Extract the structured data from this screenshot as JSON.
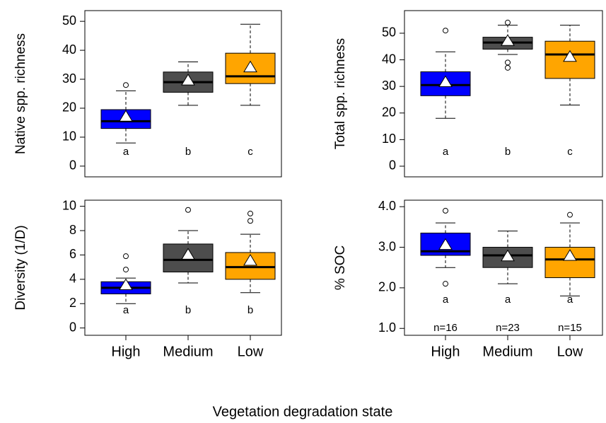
{
  "chart_data": [
    {
      "type": "box",
      "ylabel": "Native spp. richness",
      "categories": [
        null,
        null,
        null
      ],
      "ylim": [
        -3.7,
        53.7
      ],
      "yticks": [
        0,
        10,
        20,
        30,
        40,
        50
      ],
      "boxes": [
        {
          "color": "#0000ff",
          "whisker_low": 8,
          "q1": 13,
          "median": 15.5,
          "q3": 19.5,
          "whisker_high": 26,
          "mean": 17,
          "outliers": [
            28
          ],
          "letter": "a"
        },
        {
          "color": "#4d4d4d",
          "whisker_low": 21,
          "q1": 25.5,
          "median": 29,
          "q3": 32.5,
          "whisker_high": 36,
          "mean": 29.5,
          "outliers": [],
          "letter": "b"
        },
        {
          "color": "#ffa500",
          "whisker_low": 21,
          "q1": 28.5,
          "median": 31,
          "q3": 39,
          "whisker_high": 49,
          "mean": 34,
          "outliers": [],
          "letter": "c"
        }
      ]
    },
    {
      "type": "box",
      "ylabel": "Total spp. richness",
      "categories": [
        null,
        null,
        null
      ],
      "ylim": [
        -4,
        58.5
      ],
      "yticks": [
        0,
        10,
        20,
        30,
        40,
        50
      ],
      "boxes": [
        {
          "color": "#0000ff",
          "whisker_low": 18,
          "q1": 26.5,
          "median": 30.5,
          "q3": 35.5,
          "whisker_high": 43,
          "mean": 31.5,
          "outliers": [
            51
          ],
          "letter": "a"
        },
        {
          "color": "#4d4d4d",
          "whisker_low": 42,
          "q1": 44,
          "median": 46.5,
          "q3": 48.5,
          "whisker_high": 53,
          "mean": 47,
          "outliers": [
            54,
            39,
            37
          ],
          "letter": "b"
        },
        {
          "color": "#ffa500",
          "whisker_low": 23,
          "q1": 33,
          "median": 42,
          "q3": 47,
          "whisker_high": 53,
          "mean": 41,
          "outliers": [],
          "letter": "c"
        }
      ]
    },
    {
      "type": "box",
      "ylabel": "Diversity (1/D)",
      "categories": [
        "High",
        "Medium",
        "Low"
      ],
      "ylim": [
        -0.6,
        10.5
      ],
      "yticks": [
        0,
        2,
        4,
        6,
        8,
        10
      ],
      "boxes": [
        {
          "color": "#0000ff",
          "whisker_low": 2,
          "q1": 2.8,
          "median": 3.3,
          "q3": 3.8,
          "whisker_high": 4.1,
          "mean": 3.5,
          "outliers": [
            4.8,
            5.9
          ],
          "letter": "a"
        },
        {
          "color": "#4d4d4d",
          "whisker_low": 3.7,
          "q1": 4.6,
          "median": 5.6,
          "q3": 6.9,
          "whisker_high": 8,
          "mean": 6,
          "outliers": [
            9.7
          ],
          "letter": "b"
        },
        {
          "color": "#ffa500",
          "whisker_low": 2.9,
          "q1": 4,
          "median": 5,
          "q3": 6.2,
          "whisker_high": 7.7,
          "mean": 5.5,
          "outliers": [
            8.8,
            9.4
          ],
          "letter": "b"
        }
      ]
    },
    {
      "type": "box",
      "ylabel": "% SOC",
      "categories": [
        "High",
        "Medium",
        "Low"
      ],
      "ylim": [
        0.83,
        4.16
      ],
      "yticks": [
        {
          "value": 1,
          "label": "1.0"
        },
        {
          "value": 2,
          "label": "2.0"
        },
        {
          "value": 3,
          "label": "3.0"
        },
        {
          "value": 4,
          "label": "4.0"
        }
      ],
      "boxes": [
        {
          "color": "#0000ff",
          "whisker_low": 2.5,
          "q1": 2.8,
          "median": 2.9,
          "q3": 3.35,
          "whisker_high": 3.6,
          "mean": 3.05,
          "outliers": [
            3.9,
            2.1
          ],
          "letter": "a",
          "n": "n=16"
        },
        {
          "color": "#4d4d4d",
          "whisker_low": 2.1,
          "q1": 2.5,
          "median": 2.8,
          "q3": 3.0,
          "whisker_high": 3.4,
          "mean": 2.77,
          "outliers": [],
          "letter": "a",
          "n": "n=23"
        },
        {
          "color": "#ffa500",
          "whisker_low": 1.8,
          "q1": 2.25,
          "median": 2.7,
          "q3": 3.0,
          "whisker_high": 3.6,
          "mean": 2.78,
          "outliers": [
            3.8
          ],
          "letter": "a",
          "n": "n=15"
        }
      ]
    }
  ],
  "xlabel": "Vegetation degradation state"
}
